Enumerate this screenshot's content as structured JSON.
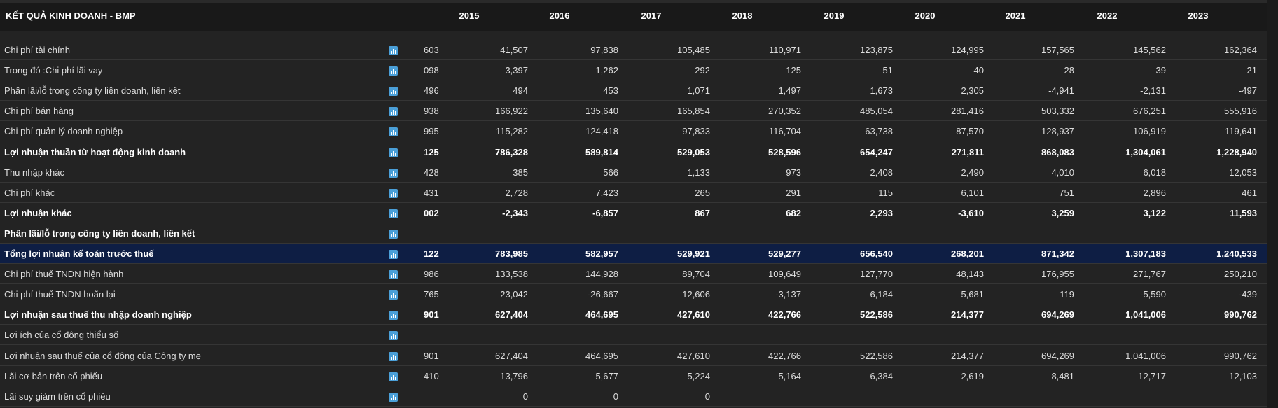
{
  "header": {
    "title": "KẾT QUẢ KINH DOANH - BMP",
    "years": [
      "2015",
      "2016",
      "2017",
      "2018",
      "2019",
      "2020",
      "2021",
      "2022",
      "2023"
    ]
  },
  "rows": [
    {
      "label": "Chi phí tài chính",
      "code": "603",
      "values": [
        "41,507",
        "97,838",
        "105,485",
        "110,971",
        "123,875",
        "124,995",
        "157,565",
        "145,562",
        "162,364"
      ]
    },
    {
      "label": "Trong đó :Chi phí lãi vay",
      "code": "098",
      "values": [
        "3,397",
        "1,262",
        "292",
        "125",
        "51",
        "40",
        "28",
        "39",
        "21"
      ]
    },
    {
      "label": "Phần lãi/lỗ trong công ty liên doanh, liên kết",
      "code": "496",
      "values": [
        "494",
        "453",
        "1,071",
        "1,497",
        "1,673",
        "2,305",
        "-4,941",
        "-2,131",
        "-497"
      ]
    },
    {
      "label": "Chi phí bán hàng",
      "code": "938",
      "values": [
        "166,922",
        "135,640",
        "165,854",
        "270,352",
        "485,054",
        "281,416",
        "503,332",
        "676,251",
        "555,916"
      ]
    },
    {
      "label": "Chi phí quản lý doanh nghiệp",
      "code": "995",
      "values": [
        "115,282",
        "124,418",
        "97,833",
        "116,704",
        "63,738",
        "87,570",
        "128,937",
        "106,919",
        "119,641"
      ]
    },
    {
      "label": "Lợi nhuận thuần từ hoạt động kinh doanh",
      "code": "125",
      "bold": true,
      "values": [
        "786,328",
        "589,814",
        "529,053",
        "528,596",
        "654,247",
        "271,811",
        "868,083",
        "1,304,061",
        "1,228,940"
      ]
    },
    {
      "label": "Thu nhập khác",
      "code": "428",
      "values": [
        "385",
        "566",
        "1,133",
        "973",
        "2,408",
        "2,490",
        "4,010",
        "6,018",
        "12,053"
      ]
    },
    {
      "label": "Chi phí khác",
      "code": "431",
      "values": [
        "2,728",
        "7,423",
        "265",
        "291",
        "115",
        "6,101",
        "751",
        "2,896",
        "461"
      ]
    },
    {
      "label": "Lợi nhuận khác",
      "code": "002",
      "bold": true,
      "values": [
        "-2,343",
        "-6,857",
        "867",
        "682",
        "2,293",
        "-3,610",
        "3,259",
        "3,122",
        "11,593"
      ]
    },
    {
      "label": "Phần lãi/lỗ trong công ty liên doanh, liên kết",
      "bold": true
    },
    {
      "label": "Tổng lợi nhuận kế toán trước thuế",
      "code": "122",
      "bold": true,
      "highlight": true,
      "values": [
        "783,985",
        "582,957",
        "529,921",
        "529,277",
        "656,540",
        "268,201",
        "871,342",
        "1,307,183",
        "1,240,533"
      ]
    },
    {
      "label": "Chi phí thuế TNDN hiện hành",
      "code": "986",
      "values": [
        "133,538",
        "144,928",
        "89,704",
        "109,649",
        "127,770",
        "48,143",
        "176,955",
        "271,767",
        "250,210"
      ]
    },
    {
      "label": "Chi phí thuế TNDN hoãn lại",
      "code": "765",
      "values": [
        "23,042",
        "-26,667",
        "12,606",
        "-3,137",
        "6,184",
        "5,681",
        "119",
        "-5,590",
        "-439"
      ]
    },
    {
      "label": "Lợi nhuận sau thuế thu nhập doanh nghiệp",
      "code": "901",
      "bold": true,
      "values": [
        "627,404",
        "464,695",
        "427,610",
        "422,766",
        "522,586",
        "214,377",
        "694,269",
        "1,041,006",
        "990,762"
      ]
    },
    {
      "label": "Lợi ích của cổ đông thiểu số"
    },
    {
      "label": "Lợi nhuận sau thuế của cổ đông của Công ty mẹ",
      "code": "901",
      "values": [
        "627,404",
        "464,695",
        "427,610",
        "422,766",
        "522,586",
        "214,377",
        "694,269",
        "1,041,006",
        "990,762"
      ]
    },
    {
      "label": "Lãi cơ bản trên cổ phiếu",
      "code": "410",
      "values": [
        "13,796",
        "5,677",
        "5,224",
        "5,164",
        "6,384",
        "2,619",
        "8,481",
        "12,717",
        "12,103"
      ]
    },
    {
      "label": "Lãi suy giảm trên cổ phiếu",
      "values": [
        "0",
        "0",
        "0"
      ]
    }
  ]
}
